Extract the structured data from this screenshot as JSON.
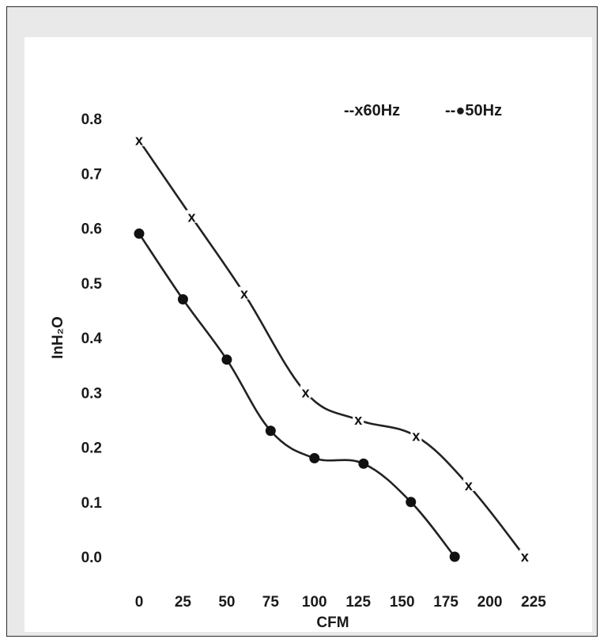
{
  "chart_data": {
    "type": "line",
    "xlabel": "CFM",
    "ylabel": "InH₂O",
    "x_ticks": [
      0,
      25,
      50,
      75,
      100,
      125,
      150,
      175,
      200,
      225
    ],
    "y_ticks": [
      0.0,
      0.1,
      0.2,
      0.3,
      0.4,
      0.5,
      0.6,
      0.7,
      0.8
    ],
    "xlim": [
      0,
      225
    ],
    "ylim": [
      0.0,
      0.8
    ],
    "grid": false,
    "legend_position": "top-right",
    "legend": [
      {
        "label": "--x60Hz",
        "marker": "x"
      },
      {
        "label": "--●50Hz",
        "marker": "circle"
      }
    ],
    "series": [
      {
        "name": "60Hz",
        "marker": "x",
        "x": [
          0,
          30,
          60,
          95,
          125,
          158,
          188,
          220
        ],
        "y": [
          0.76,
          0.62,
          0.48,
          0.3,
          0.25,
          0.22,
          0.13,
          0.0
        ]
      },
      {
        "name": "50Hz",
        "marker": "circle",
        "x": [
          0,
          25,
          50,
          75,
          100,
          128,
          155,
          180
        ],
        "y": [
          0.59,
          0.47,
          0.36,
          0.23,
          0.18,
          0.17,
          0.1,
          0.0
        ]
      }
    ]
  }
}
